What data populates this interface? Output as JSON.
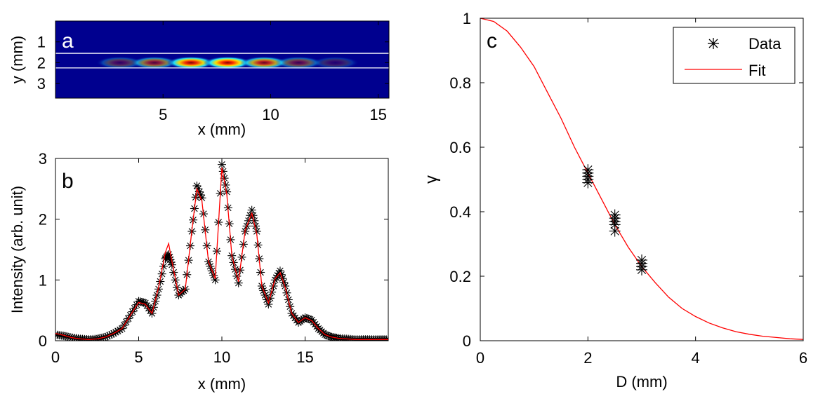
{
  "colors": {
    "marker": "#000000",
    "fit": "#ff0000",
    "axis": "#000000",
    "heat_background": "#00008f"
  },
  "chart_data": [
    {
      "id": "a",
      "type": "heatmap",
      "panel_label": "a",
      "xlabel": "x (mm)",
      "ylabel": "y (mm)",
      "xlim": [
        0,
        15.5
      ],
      "ylim": [
        0,
        3.7
      ],
      "y_reversed": true,
      "xticks": [
        5,
        10,
        15
      ],
      "yticks": [
        1,
        2,
        3
      ],
      "guide_lines_y": [
        1.55,
        2.25
      ],
      "spots": [
        {
          "x": 3.0,
          "y": 2.0,
          "intensity": 0.3
        },
        {
          "x": 4.6,
          "y": 2.0,
          "intensity": 0.55
        },
        {
          "x": 6.3,
          "y": 2.0,
          "intensity": 0.95
        },
        {
          "x": 8.0,
          "y": 2.0,
          "intensity": 1.0
        },
        {
          "x": 9.7,
          "y": 2.0,
          "intensity": 0.75
        },
        {
          "x": 11.3,
          "y": 2.0,
          "intensity": 0.4
        },
        {
          "x": 13.0,
          "y": 2.0,
          "intensity": 0.2
        }
      ]
    },
    {
      "id": "b",
      "type": "line",
      "panel_label": "b",
      "xlabel": "x (mm)",
      "ylabel": "Intensity (arb. unit)",
      "xlim": [
        0,
        20
      ],
      "ylim": [
        0,
        3
      ],
      "xticks": [
        0,
        5,
        10,
        15
      ],
      "yticks": [
        0,
        1,
        2,
        3
      ],
      "series": [
        {
          "style": "markers",
          "x": [
            0,
            0.5,
            1,
            1.5,
            2,
            2.5,
            3,
            3.5,
            4,
            4.5,
            5,
            5.4,
            5.8,
            6.2,
            6.6,
            6.8,
            7.0,
            7.4,
            7.8,
            8.2,
            8.5,
            8.8,
            9.2,
            9.6,
            10.0,
            10.3,
            10.6,
            11.0,
            11.4,
            11.8,
            12.1,
            12.4,
            12.8,
            13.2,
            13.5,
            13.8,
            14.2,
            14.6,
            15.0,
            15.4,
            15.8,
            16.2,
            16.6,
            17.0,
            17.5,
            18,
            18.5,
            19,
            19.5,
            20
          ],
          "y": [
            0.1,
            0.08,
            0.05,
            0.03,
            0.02,
            0.03,
            0.06,
            0.12,
            0.2,
            0.42,
            0.65,
            0.62,
            0.45,
            0.85,
            1.35,
            1.42,
            1.25,
            0.75,
            0.85,
            1.8,
            2.55,
            2.35,
            1.3,
            1.0,
            2.9,
            2.45,
            1.4,
            0.95,
            1.8,
            2.15,
            1.8,
            0.9,
            0.6,
            1.0,
            1.15,
            0.9,
            0.45,
            0.3,
            0.38,
            0.34,
            0.2,
            0.1,
            0.06,
            0.04,
            0.03,
            0.02,
            0.02,
            0.02,
            0.02,
            0.02
          ]
        },
        {
          "style": "line",
          "x": [
            0,
            0.5,
            1,
            1.5,
            2,
            2.5,
            3,
            3.5,
            4,
            4.5,
            5,
            5.4,
            5.8,
            6.2,
            6.6,
            6.8,
            7.0,
            7.4,
            7.8,
            8.2,
            8.5,
            8.8,
            9.2,
            9.6,
            10.0,
            10.3,
            10.6,
            11.0,
            11.4,
            11.8,
            12.1,
            12.4,
            12.8,
            13.2,
            13.5,
            13.8,
            14.2,
            14.6,
            15.0,
            15.4,
            15.8,
            16.2,
            16.6,
            17.0,
            17.5,
            18,
            18.5,
            19,
            19.5,
            20
          ],
          "y": [
            0.12,
            0.09,
            0.05,
            0.03,
            0.02,
            0.03,
            0.06,
            0.12,
            0.2,
            0.42,
            0.63,
            0.6,
            0.45,
            0.88,
            1.45,
            1.6,
            1.3,
            0.75,
            0.85,
            1.82,
            2.5,
            2.3,
            1.3,
            1.02,
            2.85,
            2.4,
            1.4,
            0.97,
            1.82,
            2.1,
            1.75,
            0.9,
            0.62,
            1.02,
            1.12,
            0.88,
            0.45,
            0.3,
            0.38,
            0.33,
            0.2,
            0.1,
            0.06,
            0.04,
            0.03,
            0.02,
            0.02,
            0.02,
            0.02,
            0.02
          ]
        }
      ]
    },
    {
      "id": "c",
      "type": "scatter",
      "panel_label": "c",
      "xlabel": "D (mm)",
      "ylabel": "γ",
      "xlim": [
        0,
        6
      ],
      "ylim": [
        0,
        1
      ],
      "xticks": [
        0,
        2,
        4,
        6
      ],
      "yticks": [
        0,
        0.2,
        0.4,
        0.6,
        0.8,
        1
      ],
      "ytick_labels": [
        "0",
        "0.2",
        "0.4",
        "0.6",
        "0.8",
        "1"
      ],
      "legend": {
        "position": "top-right",
        "entries": [
          "Data",
          "Fit"
        ]
      },
      "series": [
        {
          "name": "Data",
          "style": "markers",
          "x": [
            2.0,
            2.0,
            2.0,
            2.0,
            2.0,
            2.5,
            2.5,
            2.5,
            2.5,
            2.5,
            3.0,
            3.0,
            3.0,
            3.0
          ],
          "y": [
            0.49,
            0.5,
            0.51,
            0.52,
            0.53,
            0.34,
            0.36,
            0.37,
            0.38,
            0.39,
            0.22,
            0.23,
            0.24,
            0.25
          ]
        },
        {
          "name": "Fit",
          "style": "line",
          "x": [
            0,
            0.25,
            0.5,
            0.75,
            1,
            1.25,
            1.5,
            1.75,
            2,
            2.25,
            2.5,
            2.75,
            3,
            3.25,
            3.5,
            3.75,
            4,
            4.25,
            4.5,
            4.75,
            5,
            5.25,
            5.5,
            5.75,
            6
          ],
          "y": [
            1.0,
            0.99,
            0.96,
            0.91,
            0.85,
            0.77,
            0.69,
            0.6,
            0.52,
            0.44,
            0.36,
            0.29,
            0.23,
            0.18,
            0.135,
            0.1,
            0.075,
            0.055,
            0.04,
            0.028,
            0.02,
            0.014,
            0.01,
            0.006,
            0.004
          ]
        }
      ]
    }
  ]
}
